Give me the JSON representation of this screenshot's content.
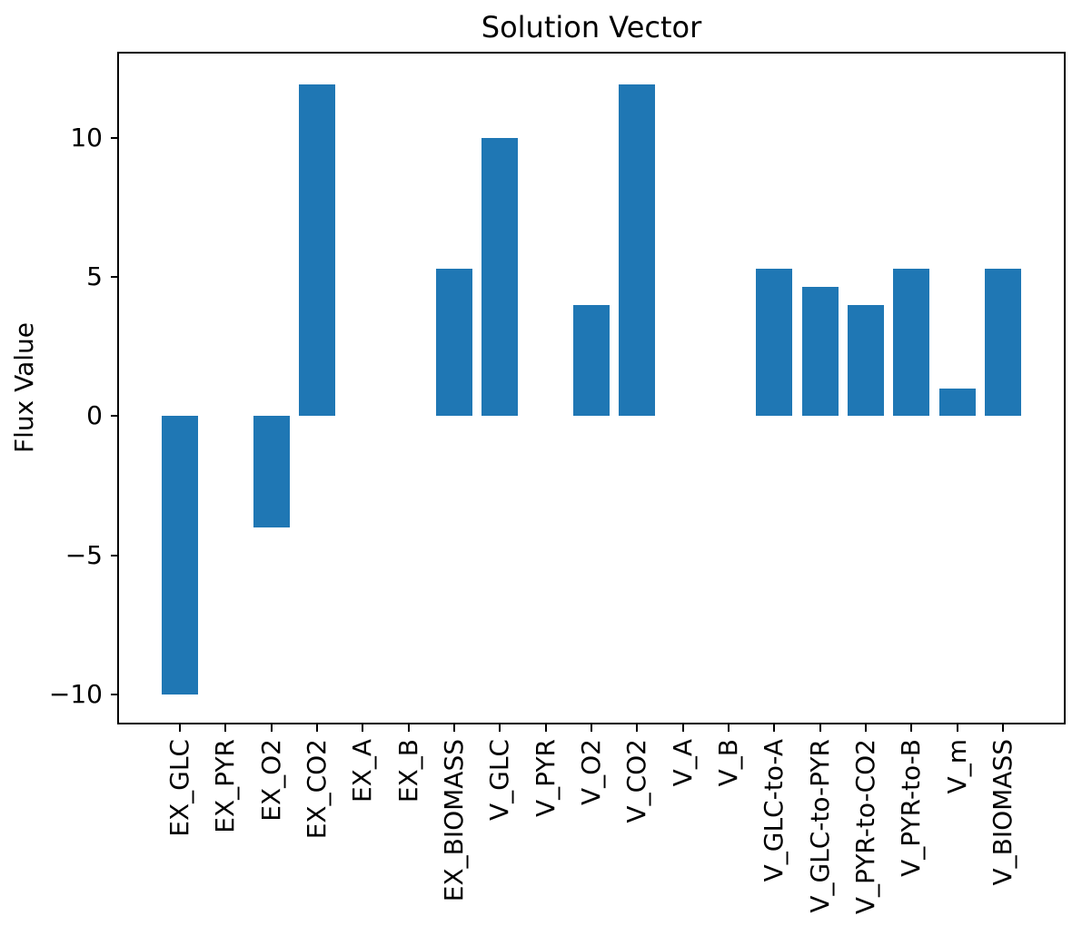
{
  "figure": {
    "title": "Solution Vector",
    "ylabel": "Flux Value",
    "background_color": "#ffffff",
    "spine_color": "#000000",
    "text_color": "#000000"
  },
  "chart_data": {
    "type": "bar",
    "title": "Solution Vector",
    "xlabel": "",
    "ylabel": "Flux Value",
    "categories": [
      "EX_GLC",
      "EX_PYR",
      "EX_O2",
      "EX_CO2",
      "EX_A",
      "EX_B",
      "EX_BIOMASS",
      "V_GLC",
      "V_PYR",
      "V_O2",
      "V_CO2",
      "V_A",
      "V_B",
      "V_GLC-to-A",
      "V_GLC-to-PYR",
      "V_PYR-to-CO2",
      "V_PYR-to-B",
      "V_m",
      "V_BIOMASS"
    ],
    "values": [
      -10,
      0,
      -4,
      11.9,
      0,
      0,
      5.3,
      10,
      0,
      4,
      11.9,
      0,
      0,
      5.3,
      4.65,
      4,
      5.3,
      1,
      5.3
    ],
    "bar_color": "#1f77b4",
    "bar_width": 0.8,
    "yticks": [
      -10,
      -5,
      0,
      5,
      10
    ],
    "ylim": [
      -11.05,
      13.05
    ],
    "xlim": [
      -1.35,
      19.35
    ],
    "grid": false,
    "legend": null,
    "x_tick_label_rotation_deg": 90
  }
}
